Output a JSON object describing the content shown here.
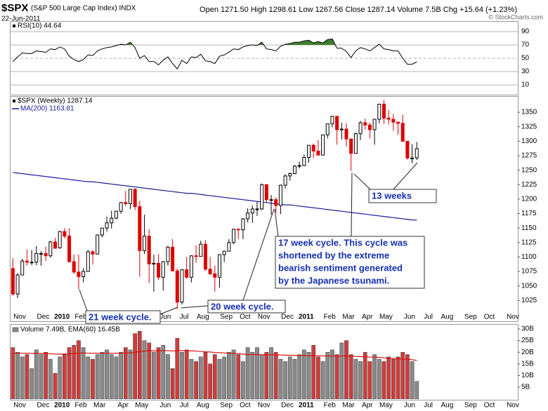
{
  "chart_data": {
    "type": "candlestick",
    "title": "$SPX",
    "subtitle": "(S&P 500 Large Cap Index) INDX",
    "date": "22-Jun-2011",
    "quote": "Open 1271.50 High 1298.61 Low 1267.56 Close 1287.14 Volume 7.5B Chg +15.64 (+1.23%)",
    "credit": "© StockCharts.com",
    "categories": [
      null,
      "Nov",
      null,
      null,
      null,
      null,
      "Dec",
      null,
      null,
      null,
      "2010",
      null,
      null,
      null,
      "Feb",
      null,
      null,
      null,
      "Mar",
      null,
      null,
      null,
      null,
      "Apr",
      null,
      null,
      null,
      "May",
      null,
      null,
      null,
      null,
      "Jun",
      null,
      null,
      null,
      "Jul",
      null,
      null,
      null,
      "Aug",
      null,
      null,
      null,
      null,
      "Sep",
      null,
      null,
      null,
      "Oct",
      null,
      null,
      null,
      "Nov",
      null,
      null,
      null,
      null,
      "Dec",
      null,
      null,
      null,
      "2011",
      null,
      null,
      null,
      null,
      "Feb",
      null,
      null,
      null,
      "Mar",
      null,
      null,
      null,
      "Apr",
      null,
      null,
      null,
      "May",
      null,
      null,
      null,
      null,
      "Jun",
      null,
      null,
      null,
      "Jul",
      null,
      null,
      null,
      "Aug",
      null,
      null,
      null,
      null,
      "Sep",
      null,
      null,
      null,
      "Oct",
      null,
      null,
      null,
      null,
      "Nov",
      null
    ],
    "price": {
      "legend": "$SPX (Weekly) 1287.14",
      "up_color": "#000000",
      "down_color": "#dd0000",
      "ylim": [
        989,
        1378
      ],
      "yticks": [
        1025,
        1050,
        1075,
        1100,
        1125,
        1150,
        1175,
        1200,
        1225,
        1250,
        1275,
        1300,
        1325,
        1350
      ],
      "open": [
        1080,
        1036,
        1069,
        1093,
        1091,
        1091,
        1106,
        1106,
        1102,
        1126,
        1116,
        1144,
        1136,
        1092,
        1074,
        1066,
        1075,
        1109,
        1105,
        1138,
        1150,
        1159,
        1167,
        1179,
        1194,
        1192,
        1217,
        1187,
        1111,
        1136,
        1088,
        1089,
        1065,
        1092,
        1117,
        1076,
        1022,
        1078,
        1065,
        1102,
        1101,
        1122,
        1079,
        1071,
        1065,
        1104,
        1110,
        1125,
        1148,
        1147,
        1166,
        1176,
        1183,
        1183,
        1225,
        1199,
        1199,
        1189,
        1224,
        1240,
        1244,
        1257,
        1258,
        1272,
        1293,
        1283,
        1276,
        1311,
        1330,
        1343,
        1320,
        1321,
        1304,
        1279,
        1313,
        1332,
        1328,
        1320,
        1338,
        1364,
        1340,
        1338,
        1333,
        1331,
        1300,
        1271,
        1271.5,
        null,
        null,
        null,
        null,
        null,
        null,
        null,
        null,
        null,
        null,
        null,
        null,
        null,
        null,
        null,
        null,
        null,
        null,
        null,
        null,
        null
      ],
      "high": [
        1098,
        1072,
        1097,
        1113,
        1112,
        1119,
        1110,
        1118,
        1128,
        1133,
        1145,
        1150,
        1150,
        1104,
        1104,
        1081,
        1112,
        1112,
        1139,
        1150,
        1170,
        1180,
        1180,
        1195,
        1214,
        1217,
        1219,
        1197,
        1173,
        1148,
        1104,
        1105,
        1093,
        1119,
        1131,
        1080,
        1078,
        1100,
        1103,
        1120,
        1128,
        1129,
        1100,
        1085,
        1105,
        1111,
        1131,
        1148,
        1149,
        1167,
        1184,
        1189,
        1196,
        1227,
        1226,
        1207,
        1203,
        1225,
        1243,
        1246,
        1259,
        1265,
        1277,
        1293,
        1296,
        1302,
        1311,
        1330,
        1344,
        1344,
        1332,
        1331,
        1304,
        1315,
        1335,
        1339,
        1332,
        1338,
        1364,
        1371,
        1354,
        1347,
        1334,
        1346,
        1300,
        1295,
        1298.61,
        null,
        null,
        null,
        null,
        null,
        null,
        null,
        null,
        null,
        null,
        null,
        null,
        null,
        null,
        null,
        null,
        null,
        null,
        null,
        null,
        null
      ],
      "low": [
        1033,
        1029,
        1069,
        1085,
        1086,
        1086,
        1085,
        1093,
        1099,
        1115,
        1114,
        1132,
        1090,
        1071,
        1044,
        1056,
        1075,
        1087,
        1105,
        1134,
        1144,
        1149,
        1165,
        1175,
        1188,
        1183,
        1181,
        1066,
        1105,
        1055,
        1040,
        1060,
        1042,
        1085,
        1076,
        1010,
        1018,
        1063,
        1056,
        1090,
        1101,
        1076,
        1069,
        1040,
        1047,
        1091,
        1110,
        1122,
        1131,
        1131,
        1160,
        1159,
        1171,
        1181,
        1194,
        1173,
        1176,
        1174,
        1218,
        1232,
        1243,
        1253,
        1257,
        1263,
        1271,
        1276,
        1276,
        1305,
        1324,
        1294,
        1303,
        1291,
        1249,
        1279,
        1302,
        1320,
        1305,
        1294,
        1331,
        1330,
        1329,
        1318,
        1311,
        1300,
        1268,
        1262,
        1267.56,
        null,
        null,
        null,
        null,
        null,
        null,
        null,
        null,
        null,
        null,
        null,
        null,
        null,
        null,
        null,
        null,
        null,
        null,
        null,
        null,
        null
      ],
      "close": [
        1036,
        1069,
        1093,
        1091,
        1091,
        1106,
        1106,
        1102,
        1126,
        1115,
        1144,
        1136,
        1092,
        1074,
        1066,
        1075,
        1109,
        1105,
        1138,
        1150,
        1159,
        1167,
        1179,
        1194,
        1192,
        1217,
        1187,
        1111,
        1136,
        1088,
        1089,
        1065,
        1092,
        1117,
        1076,
        1022,
        1078,
        1065,
        1102,
        1101,
        1122,
        1079,
        1071,
        1065,
        1104,
        1110,
        1125,
        1148,
        1147,
        1166,
        1176,
        1183,
        1183,
        1225,
        1199,
        1199,
        1189,
        1224,
        1240,
        1244,
        1257,
        1258,
        1272,
        1293,
        1283,
        1276,
        1311,
        1330,
        1343,
        1320,
        1321,
        1304,
        1279,
        1313,
        1332,
        1328,
        1320,
        1338,
        1364,
        1340,
        1338,
        1333,
        1331,
        1300,
        1271,
        1271,
        1287.14,
        null,
        null,
        null,
        null,
        null,
        null,
        null,
        null,
        null,
        null,
        null,
        null,
        null,
        null,
        null,
        null,
        null,
        null,
        null,
        null,
        null
      ]
    },
    "ma": {
      "legend": "MA(200) 1163.81",
      "color": "#1a1a9c",
      "values": [
        1246,
        1245,
        1244,
        1243,
        1242,
        1241,
        1240,
        1239,
        1238,
        1237,
        1236,
        1235,
        1234,
        1233,
        1232,
        1231,
        1230,
        1230,
        1229,
        1228,
        1227,
        1226,
        1225,
        1224,
        1223,
        1222,
        1221,
        1220,
        1219,
        1218,
        1217,
        1216,
        1215,
        1214,
        1213,
        1212,
        1211,
        1210,
        1210,
        1209,
        1208,
        1207,
        1206,
        1205,
        1204,
        1203,
        1202,
        1201,
        1200,
        1199,
        1198,
        1197,
        1196,
        1195,
        1194,
        1193,
        1192,
        1191,
        1190,
        1190,
        1189,
        1188,
        1187,
        1186,
        1185,
        1184,
        1183,
        1182,
        1181,
        1180,
        1179,
        1178,
        1177,
        1176,
        1175,
        1174,
        1173,
        1172,
        1171,
        1170,
        1169,
        1168,
        1167,
        1166,
        1165,
        1164,
        1163.81,
        null,
        null,
        null,
        null,
        null,
        null,
        null,
        null,
        null,
        null,
        null,
        null,
        null,
        null,
        null,
        null,
        null,
        null,
        null,
        null,
        null
      ]
    },
    "rsi": {
      "legend": "RSI(10) 44.64",
      "color": "#000000",
      "fill_color": "#3f7f2f",
      "ylim": [
        -4.7,
        105.8
      ],
      "yticks": [
        90,
        70,
        50,
        30,
        10
      ],
      "values": [
        45,
        52,
        58,
        57,
        57,
        61,
        60,
        59,
        64,
        63,
        67,
        64,
        53,
        48,
        45,
        48,
        55,
        54,
        61,
        64,
        66,
        67,
        69,
        71,
        70,
        74,
        66,
        50,
        54,
        45,
        45,
        40,
        47,
        52,
        42,
        34,
        47,
        42,
        52,
        51,
        56,
        46,
        45,
        42,
        53,
        55,
        59,
        64,
        63,
        67,
        69,
        70,
        69,
        74,
        64,
        63,
        61,
        68,
        71,
        72,
        74,
        74,
        76,
        77,
        73,
        75,
        73,
        78,
        79,
        65,
        65,
        60,
        51,
        61,
        66,
        64,
        61,
        66,
        71,
        64,
        63,
        61,
        61,
        50,
        41,
        41,
        44.64,
        null,
        null,
        null,
        null,
        null,
        null,
        null,
        null,
        null,
        null,
        null,
        null,
        null,
        null,
        null,
        null,
        null,
        null,
        null,
        null,
        null
      ]
    },
    "volume": {
      "legend": "Volume 7.49B, EMA(60) 16.45B",
      "up_color": "#8a8a8a",
      "down_color": "#d23c3c",
      "ylim": [
        -0.4,
        32.1
      ],
      "yticks": [
        {
          "value": 5,
          "label": "5B"
        },
        {
          "value": 10,
          "label": "10B"
        },
        {
          "value": 15,
          "label": "15B"
        },
        {
          "value": 20,
          "label": "20B"
        },
        {
          "value": 25,
          "label": "25B"
        },
        {
          "value": 30,
          "label": "30B"
        }
      ],
      "values": [
        22,
        20,
        18,
        19,
        13,
        21,
        19,
        20,
        17,
        11,
        18,
        19,
        22,
        23,
        25,
        22,
        18,
        17,
        19,
        20,
        21,
        19,
        18,
        20,
        22,
        21,
        28,
        29,
        25,
        24,
        20,
        22,
        23,
        19,
        13,
        26,
        20,
        21,
        17,
        16,
        18,
        20,
        15,
        19,
        17,
        18,
        20,
        21,
        19,
        16,
        22,
        20,
        22,
        19,
        20,
        22,
        20,
        17,
        16,
        18,
        17,
        19,
        21,
        20,
        23,
        18,
        16,
        20,
        21,
        19,
        24,
        25,
        19,
        17,
        16,
        20,
        16,
        19,
        17,
        16,
        18,
        17,
        18,
        20,
        19,
        16,
        7.49,
        null,
        null,
        null,
        null,
        null,
        null,
        null,
        null,
        null,
        null,
        null,
        null,
        null,
        null,
        null,
        null,
        null,
        null,
        null,
        null,
        null
      ],
      "ema_color": "#dd1111",
      "ema": [
        19.5,
        19.6,
        19.6,
        19.6,
        19.5,
        19.5,
        19.5,
        19.5,
        19.4,
        19.2,
        19.2,
        19.2,
        19.3,
        19.4,
        19.6,
        19.7,
        19.6,
        19.6,
        19.6,
        19.6,
        19.6,
        19.6,
        19.6,
        19.6,
        19.7,
        19.7,
        20.0,
        20.3,
        20.5,
        20.6,
        20.6,
        20.6,
        20.7,
        20.7,
        20.5,
        20.7,
        20.7,
        20.7,
        20.6,
        20.5,
        20.3,
        20.2,
        20.1,
        19.9,
        19.8,
        19.7,
        19.6,
        19.5,
        19.4,
        19.2,
        19.0,
        19.0,
        19.0,
        18.9,
        18.9,
        18.9,
        18.9,
        18.8,
        18.7,
        18.7,
        18.6,
        18.6,
        18.6,
        18.5,
        18.6,
        18.5,
        18.4,
        18.4,
        18.4,
        18.3,
        18.4,
        18.4,
        18.3,
        18.2,
        18.1,
        18.1,
        17.9,
        17.9,
        17.8,
        17.6,
        17.4,
        17.3,
        17.2,
        17.1,
        17.0,
        16.8,
        16.45,
        null,
        null,
        null,
        null,
        null,
        null,
        null,
        null,
        null,
        null,
        null,
        null,
        null,
        null,
        null,
        null,
        null,
        null,
        null,
        null,
        null
      ]
    },
    "annotations": [
      {
        "lines": [
          "21 week cycle."
        ]
      },
      {
        "lines": [
          "20 week cycle."
        ]
      },
      {
        "lines": [
          "17 week cycle. This cycle was",
          "shortened by the extreme",
          "bearish sentiment generated",
          "by the Japanese tsunami."
        ]
      },
      {
        "lines": [
          "13 weeks"
        ]
      }
    ]
  }
}
